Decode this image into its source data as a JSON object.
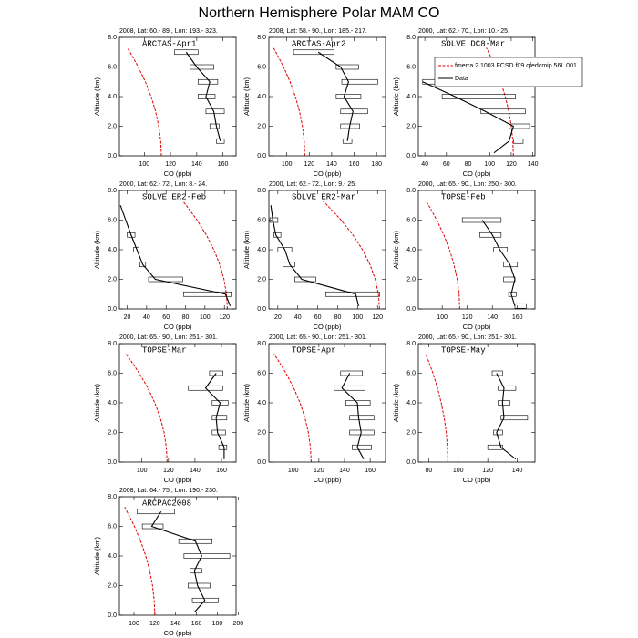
{
  "title": "Northern Hemisphere Polar MAM CO",
  "chart_data": [
    {
      "type": "line",
      "subtitle": "2008, Lat: 60.- 89., Lon: 193.- 323.",
      "label": "ARCTAS-Apr1",
      "xlabel": "CO (ppb)",
      "ylabel": "Altitude (km)",
      "xlim": [
        81,
        170
      ],
      "xticks": [
        100,
        120,
        140,
        160
      ],
      "ylim": [
        0,
        8
      ],
      "yticks": [
        {
          "value": 0,
          "label": "0.0"
        },
        {
          "value": 2,
          "label": "2.0"
        },
        {
          "value": 4,
          "label": "4.0"
        },
        {
          "value": 6,
          "label": "6.0"
        },
        {
          "value": 8,
          "label": "8.0"
        }
      ],
      "series": [
        {
          "color": "#e00000",
          "dashed": true,
          "y": [
            0,
            1,
            2,
            3,
            4,
            5,
            6,
            7,
            7.3
          ],
          "values": [
            113,
            112.5,
            111,
            108.6,
            105.2,
            100.8,
            95.4,
            89.1,
            87
          ]
        },
        {
          "color": "#000000",
          "dashed": false,
          "y": [
            1,
            2,
            3,
            4,
            5,
            6,
            7
          ],
          "values": [
            158,
            155,
            153,
            147,
            150,
            140,
            132
          ],
          "lower": [
            155,
            150,
            147,
            141,
            141,
            135,
            123
          ],
          "upper": [
            161,
            157,
            161,
            154,
            156,
            153,
            141
          ]
        }
      ]
    },
    {
      "type": "line",
      "subtitle": "2008, Lat: 58.- 90., Lon: 185.- 217.",
      "label": "ARCTAS-Apr2",
      "xlabel": "CO (ppb)",
      "ylabel": "Altitude (km)",
      "xlim": [
        84,
        188
      ],
      "xticks": [
        100,
        120,
        140,
        160,
        180
      ],
      "ylim": [
        0,
        8
      ],
      "yticks": [
        {
          "value": 0,
          "label": "0.0"
        },
        {
          "value": 2,
          "label": "2.0"
        },
        {
          "value": 4,
          "label": "4.0"
        },
        {
          "value": 6,
          "label": "6.0"
        },
        {
          "value": 8,
          "label": "8.0"
        }
      ],
      "series": [
        {
          "color": "#e00000",
          "dashed": true,
          "y": [
            0,
            1,
            2,
            3,
            4,
            5,
            6,
            7,
            7.3
          ],
          "values": [
            116,
            115.5,
            113.9,
            111.3,
            107.6,
            102.9,
            97.1,
            90.3,
            88
          ]
        },
        {
          "color": "#000000",
          "dashed": false,
          "y": [
            1,
            2,
            3,
            4,
            5,
            6,
            7
          ],
          "values": [
            154,
            156,
            159,
            151,
            155,
            148,
            128
          ],
          "lower": [
            150,
            148,
            148,
            144,
            149,
            144,
            106
          ],
          "upper": [
            158,
            165,
            172,
            166,
            181,
            164,
            142
          ]
        }
      ]
    },
    {
      "type": "line",
      "subtitle": "2000, Lat: 62.- 70., Lon: 10.- 25.",
      "label": "SOLVE DC8-Mar",
      "xlabel": "CO (ppb)",
      "ylabel": "Altitude (km)",
      "xlim": [
        34,
        142
      ],
      "xticks": [
        40,
        60,
        80,
        100,
        120,
        140
      ],
      "ylim": [
        0,
        8
      ],
      "yticks": [
        {
          "value": 0,
          "label": "0.0"
        },
        {
          "value": 2,
          "label": "2.0"
        },
        {
          "value": 4,
          "label": "4.0"
        },
        {
          "value": 6,
          "label": "6.0"
        },
        {
          "value": 8,
          "label": "8.0"
        }
      ],
      "legend": true,
      "series": [
        {
          "name": "fmerra.2.1003.FCSD.f09.qfedcmip.56L.001",
          "color": "#e00000",
          "dashed": true,
          "y": [
            0,
            1,
            2,
            3,
            4,
            5,
            6,
            7,
            7.3
          ],
          "values": [
            122,
            121.5,
            120.1,
            117.8,
            114.5,
            110.3,
            105.1,
            99,
            97
          ]
        },
        {
          "name": "Data",
          "color": "#000000",
          "dashed": false,
          "y": [
            0.2,
            1,
            2,
            3,
            4,
            5
          ],
          "values": [
            104,
            118,
            122,
            96,
            68,
            38
          ],
          "lower": [
            null,
            122,
            118,
            92,
            56,
            38
          ],
          "upper": [
            null,
            131,
            137,
            133,
            124,
            56
          ]
        }
      ]
    },
    {
      "type": "line",
      "subtitle": "2000, Lat: 62.- 72., Lon: 8.- 24.",
      "label": "SOLVE ER2-Feb",
      "xlabel": "CO (ppb)",
      "ylabel": "Altitude (km)",
      "xlim": [
        12,
        132
      ],
      "xticks": [
        20,
        40,
        60,
        80,
        100,
        120
      ],
      "ylim": [
        0,
        8
      ],
      "yticks": [
        {
          "value": 0,
          "label": "0.0"
        },
        {
          "value": 2,
          "label": "2.0"
        },
        {
          "value": 4,
          "label": "4.0"
        },
        {
          "value": 6,
          "label": "6.0"
        },
        {
          "value": 8,
          "label": "8.0"
        }
      ],
      "series": [
        {
          "color": "#e00000",
          "dashed": true,
          "y": [
            0,
            1,
            2,
            3,
            4,
            5,
            6,
            7,
            7.3
          ],
          "values": [
            123,
            122.1,
            119.6,
            115.2,
            109.2,
            101.4,
            91.9,
            80.7,
            77
          ]
        },
        {
          "color": "#000000",
          "dashed": false,
          "y": [
            0.2,
            1,
            2,
            3,
            4,
            5,
            7
          ],
          "values": [
            126,
            121,
            49,
            36,
            30,
            24,
            13
          ],
          "lower": [
            null,
            78,
            42,
            33,
            26.5,
            20,
            null
          ],
          "upper": [
            null,
            127,
            77,
            39,
            32,
            28,
            null
          ]
        }
      ]
    },
    {
      "type": "line",
      "subtitle": "2000, Lat: 62.- 72., Lon: 9.- 25.",
      "label": "SOLVE ER2-Mar",
      "xlabel": "CO (ppb)",
      "ylabel": "Altitude (km)",
      "xlim": [
        11,
        128
      ],
      "xticks": [
        20,
        40,
        60,
        80,
        100,
        120
      ],
      "ylim": [
        0,
        8
      ],
      "yticks": [
        {
          "value": 0,
          "label": "0.0"
        },
        {
          "value": 2,
          "label": "2.0"
        },
        {
          "value": 4,
          "label": "4.0"
        },
        {
          "value": 6,
          "label": "6.0"
        },
        {
          "value": 8,
          "label": "8.0"
        }
      ],
      "series": [
        {
          "color": "#e00000",
          "dashed": true,
          "y": [
            0,
            1,
            2,
            3,
            4,
            5,
            6,
            7,
            7.3
          ],
          "values": [
            122,
            120.9,
            117.7,
            112.4,
            104.9,
            95.3,
            83.5,
            69.6,
            65
          ]
        },
        {
          "color": "#000000",
          "dashed": false,
          "y": [
            0.2,
            1,
            2,
            3,
            4,
            5,
            6,
            7
          ],
          "values": [
            101,
            98,
            44,
            32,
            27,
            18,
            15,
            13
          ],
          "lower": [
            null,
            68,
            37,
            25,
            20,
            16,
            12,
            null
          ],
          "upper": [
            null,
            122,
            58,
            37,
            34,
            23,
            20,
            null
          ]
        }
      ]
    },
    {
      "type": "line",
      "subtitle": "2000, Lat: 65.- 90., Lon: 250.- 300.",
      "label": "TOPSE-Feb",
      "xlabel": "CO (ppb)",
      "ylabel": "Altitude (km)",
      "xlim": [
        81,
        174
      ],
      "xticks": [
        100,
        120,
        140,
        160
      ],
      "ylim": [
        0,
        8
      ],
      "yticks": [
        {
          "value": 0,
          "label": "0.0"
        },
        {
          "value": 2,
          "label": "2.0"
        },
        {
          "value": 4,
          "label": "4.0"
        },
        {
          "value": 6,
          "label": "6.0"
        },
        {
          "value": 8,
          "label": "8.0"
        }
      ],
      "series": [
        {
          "color": "#e00000",
          "dashed": true,
          "y": [
            0,
            1,
            2,
            3,
            4,
            5,
            6,
            7,
            7.3
          ],
          "values": [
            114,
            113.5,
            112,
            109.4,
            105.9,
            101.3,
            95.7,
            89.2,
            87
          ]
        },
        {
          "color": "#000000",
          "dashed": false,
          "y": [
            0.2,
            1,
            2,
            3,
            4,
            5,
            6
          ],
          "values": [
            158,
            155,
            158,
            154,
            146,
            140,
            132
          ],
          "lower": [
            158,
            153,
            149,
            149,
            141,
            130,
            116
          ],
          "upper": [
            167,
            159,
            158,
            160,
            152,
            147,
            147
          ]
        }
      ]
    },
    {
      "type": "line",
      "subtitle": "2000, Lat: 65.- 90., Lon: 251.- 301.",
      "label": "TOPSE-Mar",
      "xlabel": "CO (ppb)",
      "ylabel": "Altitude (km)",
      "xlim": [
        83,
        171
      ],
      "xticks": [
        100,
        120,
        140,
        160
      ],
      "ylim": [
        0,
        8
      ],
      "yticks": [
        {
          "value": 0,
          "label": "0.0"
        },
        {
          "value": 2,
          "label": "2.0"
        },
        {
          "value": 4,
          "label": "4.0"
        },
        {
          "value": 6,
          "label": "6.0"
        },
        {
          "value": 8,
          "label": "8.0"
        }
      ],
      "series": [
        {
          "color": "#e00000",
          "dashed": true,
          "y": [
            0,
            1,
            2,
            3,
            4,
            5,
            6,
            7,
            7.3
          ],
          "values": [
            119,
            118.4,
            116.7,
            113.8,
            109.7,
            104.5,
            98,
            90.5,
            88
          ]
        },
        {
          "color": "#000000",
          "dashed": false,
          "y": [
            0.2,
            1,
            2,
            3,
            4,
            5,
            6
          ],
          "values": [
            162,
            162,
            157,
            156,
            159,
            148,
            156
          ],
          "lower": [
            null,
            158,
            153,
            153,
            153,
            135,
            151
          ],
          "upper": [
            null,
            164,
            163,
            164,
            165,
            161,
            161
          ]
        }
      ]
    },
    {
      "type": "line",
      "subtitle": "2000, Lat: 65.- 90., Lon: 251.- 301.",
      "label": "TOPSE-Apr",
      "xlabel": "CO (ppb)",
      "ylabel": "Altitude (km)",
      "xlim": [
        81,
        172
      ],
      "xticks": [
        100,
        120,
        140,
        160
      ],
      "ylim": [
        0,
        8
      ],
      "yticks": [
        {
          "value": 0,
          "label": "0.0"
        },
        {
          "value": 2,
          "label": "2.0"
        },
        {
          "value": 4,
          "label": "4.0"
        },
        {
          "value": 6,
          "label": "6.0"
        },
        {
          "value": 8,
          "label": "8.0"
        }
      ],
      "series": [
        {
          "color": "#e00000",
          "dashed": true,
          "y": [
            0,
            1,
            2,
            3,
            4,
            5,
            6,
            7,
            7.3
          ],
          "values": [
            114,
            113.4,
            111.8,
            109.1,
            105.3,
            100.4,
            94.4,
            87.3,
            85
          ]
        },
        {
          "color": "#000000",
          "dashed": false,
          "y": [
            0.2,
            1,
            2,
            3,
            4,
            5,
            6
          ],
          "values": [
            155,
            150,
            153,
            151,
            150,
            138,
            144
          ],
          "lower": [
            null,
            146,
            144,
            144,
            141,
            132,
            137
          ],
          "upper": [
            null,
            161,
            163,
            163,
            160,
            156,
            154
          ]
        }
      ]
    },
    {
      "type": "line",
      "subtitle": "2000, Lat: 65.- 90., Lon: 251.- 301.",
      "label": "TOPSE-May",
      "xlabel": "CO (ppb)",
      "ylabel": "Altitude (km)",
      "xlim": [
        73,
        152
      ],
      "xticks": [
        80,
        100,
        120,
        140
      ],
      "ylim": [
        0,
        8
      ],
      "yticks": [
        {
          "value": 0,
          "label": "0.0"
        },
        {
          "value": 2,
          "label": "2.0"
        },
        {
          "value": 4,
          "label": "4.0"
        },
        {
          "value": 6,
          "label": "6.0"
        },
        {
          "value": 8,
          "label": "8.0"
        }
      ],
      "series": [
        {
          "color": "#e00000",
          "dashed": true,
          "y": [
            0,
            1,
            2,
            3,
            4,
            5,
            6,
            7,
            7.3
          ],
          "values": [
            93,
            92.7,
            91.9,
            90.5,
            88.5,
            86,
            82.9,
            79.2,
            78
          ]
        },
        {
          "color": "#000000",
          "dashed": false,
          "y": [
            0.2,
            1,
            2,
            3,
            4,
            5,
            6
          ],
          "values": [
            139,
            129,
            126,
            131,
            130,
            131,
            126
          ],
          "lower": [
            null,
            120,
            124,
            129,
            127,
            127,
            123
          ],
          "upper": [
            null,
            130,
            130,
            147,
            135,
            139,
            130
          ]
        }
      ]
    },
    {
      "type": "line",
      "subtitle": "2008, Lat: 64.- 75., Lon: 190.- 230.",
      "label": "ARCPAC2008",
      "xlabel": "CO (ppb)",
      "ylabel": "Altitude (km)",
      "xlim": [
        86,
        198
      ],
      "xticks": [
        100,
        120,
        140,
        160,
        180,
        200
      ],
      "ylim": [
        0,
        8
      ],
      "yticks": [
        {
          "value": 0,
          "label": "0.0"
        },
        {
          "value": 2,
          "label": "2.0"
        },
        {
          "value": 4,
          "label": "4.0"
        },
        {
          "value": 6,
          "label": "6.0"
        },
        {
          "value": 8,
          "label": "8.0"
        }
      ],
      "series": [
        {
          "color": "#e00000",
          "dashed": true,
          "y": [
            0,
            1,
            2,
            3,
            4,
            5,
            6,
            7,
            7.3
          ],
          "values": [
            120,
            119.4,
            117.8,
            115.1,
            111.3,
            106.4,
            100.4,
            93.3,
            91
          ]
        },
        {
          "color": "#000000",
          "dashed": false,
          "y": [
            0.2,
            1,
            2,
            3,
            4,
            5,
            6,
            7
          ],
          "values": [
            158,
            168,
            161,
            158,
            165,
            159,
            117,
            126
          ],
          "lower": [
            null,
            156,
            152,
            154,
            148,
            143,
            108,
            103
          ],
          "upper": [
            null,
            181,
            173,
            165,
            192,
            175,
            128,
            139
          ]
        }
      ]
    }
  ]
}
